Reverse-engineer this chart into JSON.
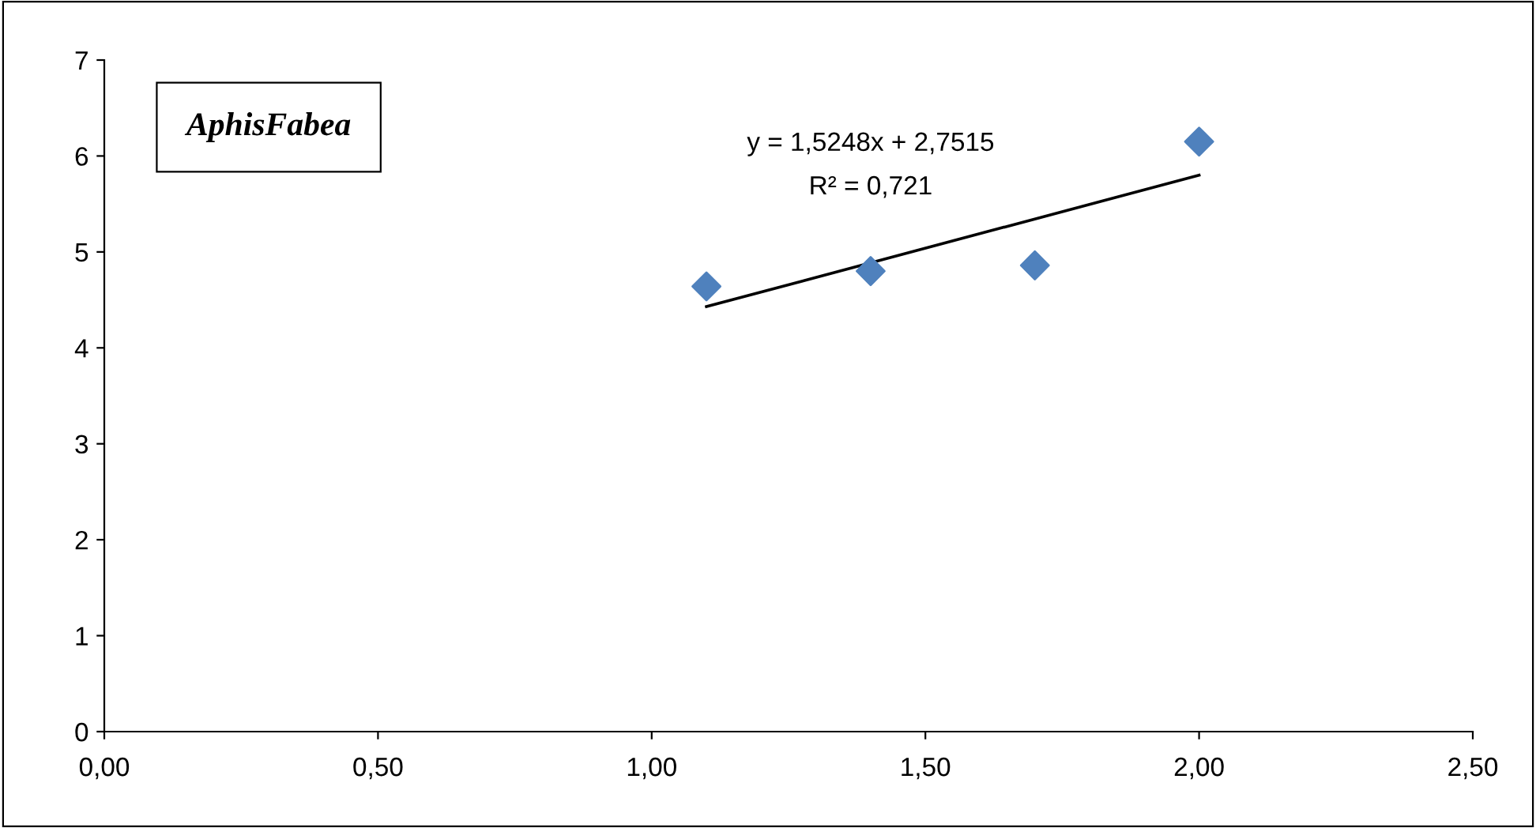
{
  "chart_data": {
    "type": "scatter",
    "title": "AphisFabea",
    "x": [
      1.1,
      1.4,
      1.7,
      2.0
    ],
    "series": [
      {
        "color": "#4f81bd",
        "marker": "diamond",
        "values": [
          4.64,
          4.8,
          4.86,
          6.15
        ]
      },
      {
        "type": "line",
        "color": "#000000",
        "marker": "none",
        "x": [
          1.1,
          2.0
        ],
        "values": [
          4.43,
          5.8
        ]
      }
    ],
    "annotations": [
      "y = 1,5248x + 2,7515",
      "R² = 0,721"
    ],
    "xlim": [
      0,
      2.5
    ],
    "xticks": [
      {
        "value": 0,
        "label": "0,00"
      },
      {
        "value": 0.5,
        "label": "0,50"
      },
      {
        "value": 1.0,
        "label": "1,00"
      },
      {
        "value": 1.5,
        "label": "1,50"
      },
      {
        "value": 2.0,
        "label": "2,00"
      },
      {
        "value": 2.5,
        "label": "2,50"
      }
    ],
    "ylim": [
      0,
      7
    ],
    "yticks": [
      0,
      1,
      2,
      3,
      4,
      5,
      6,
      7
    ],
    "grid": false,
    "legend": false
  }
}
